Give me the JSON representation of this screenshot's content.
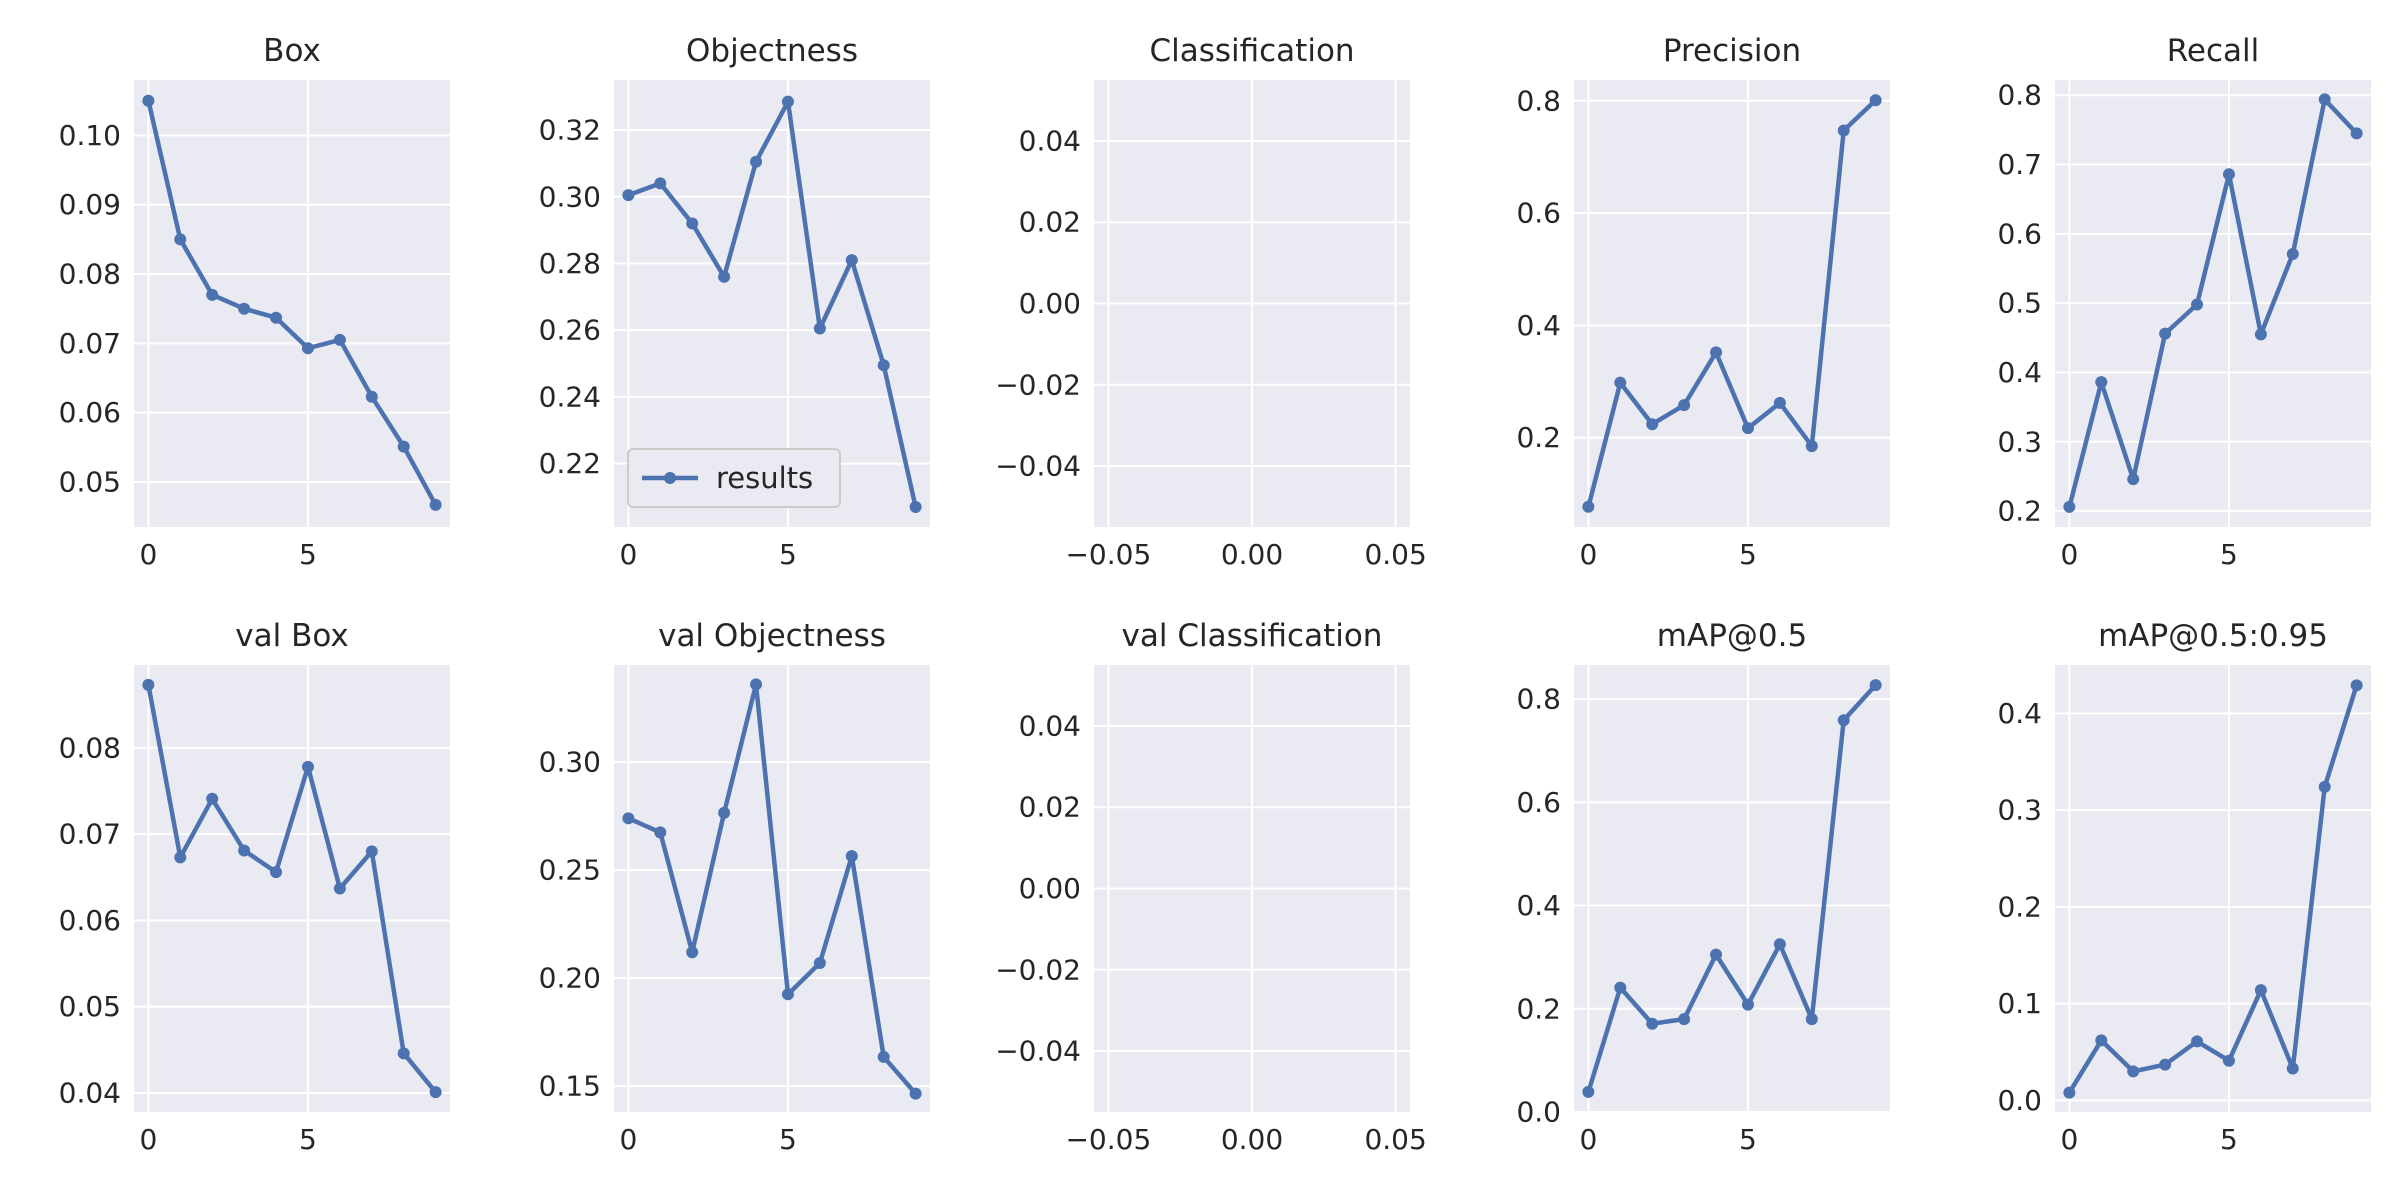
{
  "colors": {
    "series": "#4c72b0",
    "plot_background": "#eaeaf2",
    "grid": "#ffffff",
    "text": "#262626"
  },
  "chart_data": [
    {
      "type": "line",
      "title": "Box",
      "x": [
        0,
        1,
        2,
        3,
        4,
        5,
        6,
        7,
        8,
        9
      ],
      "series": [
        {
          "name": "results",
          "values": [
            0.105,
            0.085,
            0.077,
            0.075,
            0.0737,
            0.0693,
            0.0705,
            0.0623,
            0.0551,
            0.0467
          ]
        }
      ],
      "xlim": [
        -0.45,
        9.45
      ],
      "ylim": [
        0.0435,
        0.108
      ],
      "xticks": [
        0,
        5
      ],
      "yticks": [
        0.05,
        0.06,
        0.07,
        0.08,
        0.09,
        0.1
      ],
      "xtick_labels": [
        "0",
        "5"
      ],
      "ytick_labels": [
        "0.05",
        "0.06",
        "0.07",
        "0.08",
        "0.09",
        "0.10"
      ],
      "grid": true,
      "legend": false
    },
    {
      "type": "line",
      "title": "Objectness",
      "x": [
        0,
        1,
        2,
        3,
        4,
        5,
        6,
        7,
        8,
        9
      ],
      "series": [
        {
          "name": "results",
          "values": [
            0.3005,
            0.304,
            0.292,
            0.276,
            0.3105,
            0.3285,
            0.2605,
            0.281,
            0.2495,
            0.207
          ]
        }
      ],
      "xlim": [
        -0.45,
        9.45
      ],
      "ylim": [
        0.201,
        0.335
      ],
      "xticks": [
        0,
        5
      ],
      "yticks": [
        0.22,
        0.24,
        0.26,
        0.28,
        0.3,
        0.32
      ],
      "xtick_labels": [
        "0",
        "5"
      ],
      "ytick_labels": [
        "0.22",
        "0.24",
        "0.26",
        "0.28",
        "0.30",
        "0.32"
      ],
      "grid": true,
      "legend": true,
      "legend_label": "results",
      "legend_position": "lower-left"
    },
    {
      "type": "line",
      "title": "Classification",
      "x": [],
      "series": [],
      "xlim": [
        -0.055,
        0.055
      ],
      "ylim": [
        -0.055,
        0.055
      ],
      "xticks": [
        -0.05,
        0.0,
        0.05
      ],
      "yticks": [
        -0.04,
        -0.02,
        0.0,
        0.02,
        0.04
      ],
      "xtick_labels": [
        "−0.05",
        "0.00",
        "0.05"
      ],
      "ytick_labels": [
        "−0.04",
        "−0.02",
        "0.00",
        "0.02",
        "0.04"
      ],
      "grid": true,
      "legend": false
    },
    {
      "type": "line",
      "title": "Precision",
      "x": [
        0,
        1,
        2,
        3,
        4,
        5,
        6,
        7,
        8,
        9
      ],
      "series": [
        {
          "name": "results",
          "values": [
            0.077,
            0.298,
            0.224,
            0.258,
            0.352,
            0.217,
            0.262,
            0.185,
            0.747,
            0.801
          ]
        }
      ],
      "xlim": [
        -0.45,
        9.45
      ],
      "ylim": [
        0.041,
        0.837
      ],
      "xticks": [
        0,
        5
      ],
      "yticks": [
        0.2,
        0.4,
        0.6,
        0.8
      ],
      "xtick_labels": [
        "0",
        "5"
      ],
      "ytick_labels": [
        "0.2",
        "0.4",
        "0.6",
        "0.8"
      ],
      "grid": true,
      "legend": false
    },
    {
      "type": "line",
      "title": "Recall",
      "x": [
        0,
        1,
        2,
        3,
        4,
        5,
        6,
        7,
        8,
        9
      ],
      "series": [
        {
          "name": "results",
          "values": [
            0.206,
            0.386,
            0.246,
            0.456,
            0.498,
            0.686,
            0.455,
            0.571,
            0.794,
            0.745
          ]
        }
      ],
      "xlim": [
        -0.45,
        9.45
      ],
      "ylim": [
        0.177,
        0.822
      ],
      "xticks": [
        0,
        5
      ],
      "yticks": [
        0.2,
        0.3,
        0.4,
        0.5,
        0.6,
        0.7,
        0.8
      ],
      "xtick_labels": [
        "0",
        "5"
      ],
      "ytick_labels": [
        "0.2",
        "0.3",
        "0.4",
        "0.5",
        "0.6",
        "0.7",
        "0.8"
      ],
      "grid": true,
      "legend": false
    },
    {
      "type": "line",
      "title": "val Box",
      "x": [
        0,
        1,
        2,
        3,
        4,
        5,
        6,
        7,
        8,
        9
      ],
      "series": [
        {
          "name": "results",
          "values": [
            0.0873,
            0.0673,
            0.0741,
            0.0681,
            0.0656,
            0.0778,
            0.0637,
            0.068,
            0.0446,
            0.0401
          ]
        }
      ],
      "xlim": [
        -0.45,
        9.45
      ],
      "ylim": [
        0.0378,
        0.0896
      ],
      "xticks": [
        0,
        5
      ],
      "yticks": [
        0.04,
        0.05,
        0.06,
        0.07,
        0.08
      ],
      "xtick_labels": [
        "0",
        "5"
      ],
      "ytick_labels": [
        "0.04",
        "0.05",
        "0.06",
        "0.07",
        "0.08"
      ],
      "grid": true,
      "legend": false
    },
    {
      "type": "line",
      "title": "val Objectness",
      "x": [
        0,
        1,
        2,
        3,
        4,
        5,
        6,
        7,
        8,
        9
      ],
      "series": [
        {
          "name": "results",
          "values": [
            0.274,
            0.2675,
            0.212,
            0.2765,
            0.336,
            0.1925,
            0.207,
            0.2565,
            0.1635,
            0.1465
          ]
        }
      ],
      "xlim": [
        -0.45,
        9.45
      ],
      "ylim": [
        0.138,
        0.345
      ],
      "xticks": [
        0,
        5
      ],
      "yticks": [
        0.15,
        0.2,
        0.25,
        0.3
      ],
      "xtick_labels": [
        "0",
        "5"
      ],
      "ytick_labels": [
        "0.15",
        "0.20",
        "0.25",
        "0.30"
      ],
      "grid": true,
      "legend": false
    },
    {
      "type": "line",
      "title": "val Classification",
      "x": [],
      "series": [],
      "xlim": [
        -0.055,
        0.055
      ],
      "ylim": [
        -0.055,
        0.055
      ],
      "xticks": [
        -0.05,
        0.0,
        0.05
      ],
      "yticks": [
        -0.04,
        -0.02,
        0.0,
        0.02,
        0.04
      ],
      "xtick_labels": [
        "−0.05",
        "0.00",
        "0.05"
      ],
      "ytick_labels": [
        "−0.04",
        "−0.02",
        "0.00",
        "0.02",
        "0.04"
      ],
      "grid": true,
      "legend": false
    },
    {
      "type": "line",
      "title": "mAP@0.5",
      "x": [
        0,
        1,
        2,
        3,
        4,
        5,
        6,
        7,
        8,
        9
      ],
      "series": [
        {
          "name": "results",
          "values": [
            0.039,
            0.241,
            0.171,
            0.18,
            0.305,
            0.208,
            0.325,
            0.18,
            0.759,
            0.827
          ]
        }
      ],
      "xlim": [
        -0.45,
        9.45
      ],
      "ylim": [
        0.0,
        0.866
      ],
      "xticks": [
        0,
        5
      ],
      "yticks": [
        0.0,
        0.2,
        0.4,
        0.6,
        0.8
      ],
      "xtick_labels": [
        "0",
        "5"
      ],
      "ytick_labels": [
        "0.0",
        "0.2",
        "0.4",
        "0.6",
        "0.8"
      ],
      "grid": true,
      "legend": false
    },
    {
      "type": "line",
      "title": "mAP@0.5:0.95",
      "x": [
        0,
        1,
        2,
        3,
        4,
        5,
        6,
        7,
        8,
        9
      ],
      "series": [
        {
          "name": "results",
          "values": [
            0.008,
            0.062,
            0.03,
            0.037,
            0.061,
            0.041,
            0.114,
            0.033,
            0.324,
            0.429
          ]
        }
      ],
      "xlim": [
        -0.45,
        9.45
      ],
      "ylim": [
        -0.012,
        0.45
      ],
      "xticks": [
        0,
        5
      ],
      "yticks": [
        0.0,
        0.1,
        0.2,
        0.3,
        0.4
      ],
      "xtick_labels": [
        "0",
        "5"
      ],
      "ytick_labels": [
        "0.0",
        "0.1",
        "0.2",
        "0.3",
        "0.4"
      ],
      "grid": true,
      "legend": false
    }
  ]
}
